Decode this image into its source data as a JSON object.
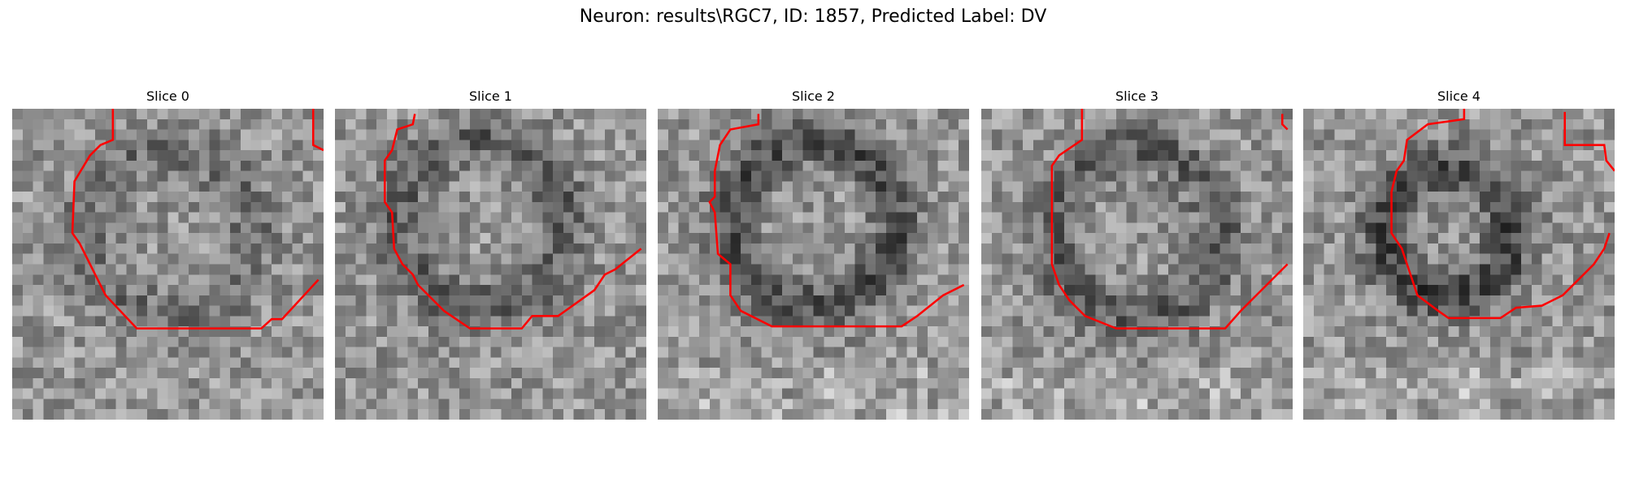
{
  "title": "Neuron: results\\RGC7, ID: 1857, Predicted Label: DV",
  "panels": [
    {
      "title": "Slice 0"
    },
    {
      "title": "Slice 1"
    },
    {
      "title": "Slice 2"
    },
    {
      "title": "Slice 3"
    },
    {
      "title": "Slice 4"
    }
  ]
}
